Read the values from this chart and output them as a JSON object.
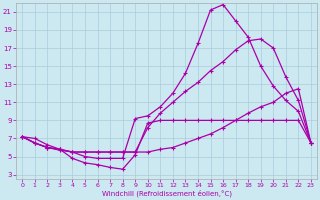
{
  "xlabel": "Windchill (Refroidissement éolien,°C)",
  "bg_color": "#cce8f0",
  "grid_color": "#aaccdd",
  "line_color": "#aa00aa",
  "xlim": [
    -0.5,
    23.5
  ],
  "ylim": [
    2.5,
    22
  ],
  "xticks": [
    0,
    1,
    2,
    3,
    4,
    5,
    6,
    7,
    8,
    9,
    10,
    11,
    12,
    13,
    14,
    15,
    16,
    17,
    18,
    19,
    20,
    21,
    22,
    23
  ],
  "yticks": [
    3,
    5,
    7,
    9,
    11,
    13,
    15,
    17,
    19,
    21
  ],
  "series1_x": [
    0,
    1,
    2,
    3,
    4,
    5,
    6,
    7,
    8,
    9,
    10,
    11,
    12,
    13,
    14,
    15,
    16,
    17,
    18,
    19,
    20,
    21,
    22,
    23
  ],
  "series1_y": [
    7.2,
    7.0,
    6.3,
    5.8,
    4.8,
    4.3,
    4.1,
    3.8,
    3.6,
    5.2,
    8.7,
    9.0,
    9.0,
    9.0,
    9.0,
    9.0,
    9.0,
    9.0,
    9.0,
    9.0,
    9.0,
    9.0,
    9.0,
    6.5
  ],
  "series2_x": [
    0,
    1,
    2,
    3,
    4,
    5,
    6,
    7,
    8,
    9,
    10,
    11,
    12,
    13,
    14,
    15,
    16,
    17,
    18,
    19,
    20,
    21,
    22,
    23
  ],
  "series2_y": [
    7.2,
    6.5,
    6.0,
    5.8,
    5.5,
    5.5,
    5.5,
    5.5,
    5.5,
    5.5,
    5.5,
    5.8,
    6.0,
    6.5,
    7.0,
    7.5,
    8.2,
    9.0,
    9.8,
    10.5,
    11.0,
    12.0,
    12.5,
    6.5
  ],
  "series3_x": [
    0,
    1,
    2,
    3,
    4,
    5,
    6,
    7,
    8,
    9,
    10,
    11,
    12,
    13,
    14,
    15,
    16,
    17,
    18,
    19,
    20,
    21,
    22,
    23
  ],
  "series3_y": [
    7.2,
    6.5,
    6.0,
    5.7,
    5.5,
    5.0,
    4.8,
    4.8,
    4.8,
    9.2,
    9.5,
    10.5,
    12.0,
    14.2,
    17.5,
    21.2,
    21.8,
    20.0,
    18.2,
    15.0,
    12.8,
    11.2,
    10.0,
    6.5
  ],
  "series4_x": [
    0,
    1,
    2,
    3,
    4,
    5,
    6,
    7,
    8,
    9,
    10,
    11,
    12,
    13,
    14,
    15,
    16,
    17,
    18,
    19,
    20,
    21,
    22,
    23
  ],
  "series4_y": [
    7.2,
    6.5,
    6.0,
    5.8,
    5.5,
    5.5,
    5.5,
    5.5,
    5.5,
    5.5,
    8.2,
    9.8,
    11.0,
    12.2,
    13.2,
    14.5,
    15.5,
    16.8,
    17.8,
    18.0,
    17.0,
    13.8,
    11.2,
    6.5
  ]
}
